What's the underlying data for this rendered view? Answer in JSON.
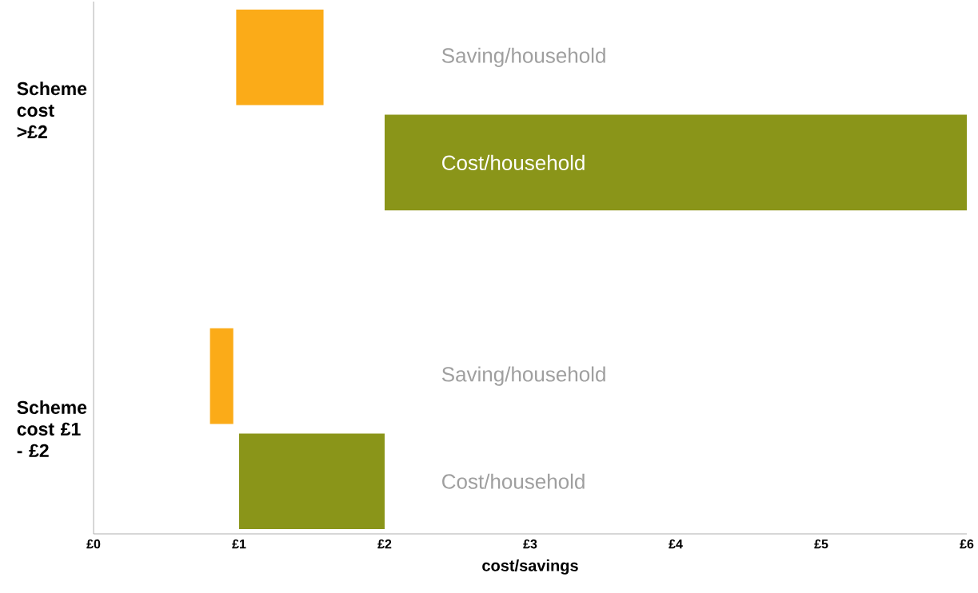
{
  "chart_data": {
    "type": "bar",
    "orientation": "horizontal",
    "xlabel": "cost/savings",
    "categories": [
      "Scheme cost >£2",
      "Scheme cost £1 - £2"
    ],
    "series": [
      {
        "name": "Saving/household",
        "color": "#fbab18",
        "values": [
          0.6,
          0.16
        ],
        "base": [
          0.98,
          0.8
        ]
      },
      {
        "name": "Cost/household",
        "color": "#8a9519",
        "values": [
          4,
          1
        ],
        "base": [
          2,
          1
        ]
      }
    ],
    "xlim": [
      0,
      6
    ],
    "xticks": [
      {
        "value": 0,
        "label": "£0"
      },
      {
        "value": 1,
        "label": "£1"
      },
      {
        "value": 2,
        "label": "£2"
      },
      {
        "value": 3,
        "label": "£3"
      },
      {
        "value": 4,
        "label": "£4"
      },
      {
        "value": 5,
        "label": "£5"
      },
      {
        "value": 6,
        "label": "£6"
      }
    ],
    "grid": false
  }
}
